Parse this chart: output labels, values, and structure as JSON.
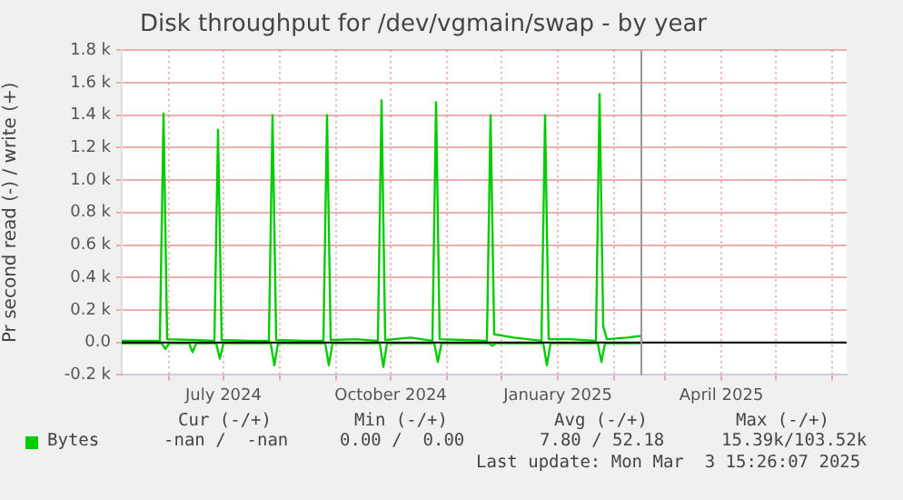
{
  "chart_data": {
    "type": "line",
    "title": "Disk throughput for /dev/vgmain/swap - by year",
    "ylabel": "Pr second read (-) / write (+)",
    "xlim": [
      "2024-05-06",
      "2025-06-09"
    ],
    "xticks": [
      {
        "value": "2024-06-01",
        "label": null
      },
      {
        "value": "2024-07-01",
        "label": "July 2024"
      },
      {
        "value": "2024-08-01",
        "label": null
      },
      {
        "value": "2024-09-01",
        "label": null
      },
      {
        "value": "2024-10-01",
        "label": "October 2024"
      },
      {
        "value": "2024-11-01",
        "label": null
      },
      {
        "value": "2024-12-01",
        "label": null
      },
      {
        "value": "2025-01-01",
        "label": "January 2025"
      },
      {
        "value": "2025-02-01",
        "label": null
      },
      {
        "value": "2025-03-01",
        "label": null
      },
      {
        "value": "2025-04-01",
        "label": "April 2025"
      },
      {
        "value": "2025-05-01",
        "label": null
      },
      {
        "value": "2025-06-01",
        "label": null
      }
    ],
    "ylim": [
      -200,
      1800
    ],
    "yticks": [
      {
        "value": -200,
        "label": "-0.2 k"
      },
      {
        "value": 0,
        "label": "0.0"
      },
      {
        "value": 200,
        "label": "0.2 k"
      },
      {
        "value": 400,
        "label": "0.4 k"
      },
      {
        "value": 600,
        "label": "0.6 k"
      },
      {
        "value": 800,
        "label": "0.8 k"
      },
      {
        "value": 1000,
        "label": "1.0 k"
      },
      {
        "value": 1200,
        "label": "1.2 k"
      },
      {
        "value": 1400,
        "label": "1.4 k"
      },
      {
        "value": 1600,
        "label": "1.6 k"
      },
      {
        "value": 1800,
        "label": "1.8 k"
      }
    ],
    "grid": true,
    "legend": "bottom",
    "marker": "none",
    "line_style": "solid",
    "ref_lines": [
      {
        "axis": "y",
        "value": 0,
        "color": "#000000"
      },
      {
        "axis": "x",
        "value": "2025-02-16",
        "color": "#999999"
      }
    ],
    "series": [
      {
        "name": "Bytes",
        "color": "#00cc00",
        "x": [
          "2024-05-06",
          "2024-05-27",
          "2024-05-29",
          "2024-05-31",
          "2024-06-15",
          "2024-06-26",
          "2024-06-28",
          "2024-06-30",
          "2024-07-15",
          "2024-07-26",
          "2024-07-28",
          "2024-07-30",
          "2024-08-15",
          "2024-08-25",
          "2024-08-27",
          "2024-08-29",
          "2024-09-12",
          "2024-09-24",
          "2024-09-26",
          "2024-09-28",
          "2024-10-12",
          "2024-10-24",
          "2024-10-26",
          "2024-10-28",
          "2024-11-10",
          "2024-11-23",
          "2024-11-25",
          "2024-11-27",
          "2024-12-08",
          "2024-12-23",
          "2024-12-25",
          "2024-12-27",
          "2025-01-08",
          "2025-01-22",
          "2025-01-24",
          "2025-01-26",
          "2025-01-28",
          "2025-02-08",
          "2025-02-16"
        ],
        "values": [
          10,
          10,
          1410,
          20,
          15,
          10,
          1310,
          15,
          10,
          10,
          1400,
          15,
          10,
          10,
          1400,
          15,
          20,
          10,
          1490,
          15,
          30,
          10,
          1480,
          20,
          15,
          10,
          1400,
          50,
          30,
          10,
          1400,
          20,
          20,
          10,
          1530,
          100,
          20,
          30,
          40
        ]
      },
      {
        "color": "#00cc00",
        "x": [
          "2024-05-06",
          "2024-05-28",
          "2024-05-30",
          "2024-06-01",
          "2024-06-12",
          "2024-06-14",
          "2024-06-16",
          "2024-06-27",
          "2024-06-29",
          "2024-07-01",
          "2024-07-27",
          "2024-07-29",
          "2024-07-31",
          "2024-08-26",
          "2024-08-28",
          "2024-08-30",
          "2024-09-25",
          "2024-09-27",
          "2024-09-29",
          "2024-10-25",
          "2024-10-27",
          "2024-10-29",
          "2024-11-24",
          "2024-11-26",
          "2024-11-28",
          "2024-12-24",
          "2024-12-26",
          "2024-12-28",
          "2025-01-23",
          "2025-01-25",
          "2025-01-27",
          "2025-02-16"
        ],
        "values": [
          -5,
          -5,
          -40,
          -5,
          -5,
          -60,
          -5,
          -5,
          -100,
          -5,
          -5,
          -140,
          -5,
          -5,
          -140,
          -5,
          -5,
          -150,
          -5,
          -5,
          -120,
          -5,
          -5,
          -20,
          -5,
          -5,
          -140,
          -5,
          -5,
          -120,
          -5,
          -5
        ]
      }
    ],
    "annotations": [
      "Cur (-/+)",
      "Min (-/+)",
      "Avg (-/+)",
      "Max (-/+)",
      "-nan /  -nan",
      "0.00 /  0.00",
      "7.80 / 52.18",
      "15.39k/103.52k",
      "Last update: Mon Mar  3 15:26:07 2025"
    ]
  }
}
